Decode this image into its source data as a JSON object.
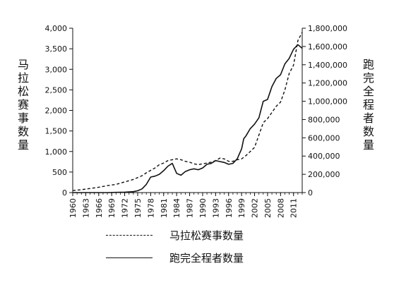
{
  "chart_data": {
    "type": "line",
    "xlabel": "",
    "x_ticks": [
      "1960",
      "1963",
      "1966",
      "1969",
      "1972",
      "1975",
      "1978",
      "1981",
      "1984",
      "1987",
      "1990",
      "1993",
      "1996",
      "1999",
      "2002",
      "2005",
      "2008",
      "2011"
    ],
    "xlim": [
      1960,
      2013
    ],
    "y_left": {
      "label": "马拉松赛事数量",
      "ylim": [
        0,
        4000
      ],
      "ticks": [
        0,
        500,
        1000,
        1500,
        2000,
        2500,
        3000,
        3500,
        4000
      ],
      "tick_labels": [
        "0",
        "500",
        "1,000",
        "1,500",
        "2,000",
        "2,500",
        "3,000",
        "3,500",
        "4,000"
      ]
    },
    "y_right": {
      "label": "跑完全程者数量",
      "ylim": [
        0,
        1800000
      ],
      "ticks": [
        0,
        200000,
        400000,
        600000,
        800000,
        1000000,
        1200000,
        1400000,
        1600000,
        1800000
      ],
      "tick_labels": [
        "0",
        "200,000",
        "400,000",
        "600,000",
        "800,000",
        "1,000,000",
        "1,200,000",
        "1,400,000",
        "1,600,000",
        "1,800,000"
      ]
    },
    "series": [
      {
        "name": "马拉松赛事数量",
        "axis": "left",
        "style": "dashed",
        "x": [
          1960,
          1962,
          1964,
          1966,
          1968,
          1970,
          1972,
          1974,
          1976,
          1977,
          1978,
          1979,
          1980,
          1981,
          1982,
          1983,
          1984,
          1985,
          1986,
          1987,
          1988,
          1989,
          1990,
          1991,
          1992,
          1993,
          1994,
          1995,
          1996,
          1997,
          1998,
          1999,
          2000,
          2001,
          2002,
          2003,
          2004,
          2005,
          2006,
          2007,
          2008,
          2009,
          2010,
          2011,
          2012,
          2013
        ],
        "values": [
          50,
          70,
          100,
          130,
          170,
          200,
          260,
          320,
          410,
          480,
          540,
          600,
          680,
          720,
          780,
          800,
          820,
          800,
          760,
          740,
          700,
          680,
          700,
          720,
          740,
          780,
          840,
          820,
          760,
          760,
          800,
          820,
          900,
          1000,
          1100,
          1400,
          1700,
          1800,
          1950,
          2100,
          2200,
          2500,
          2900,
          3100,
          3700,
          3900
        ]
      },
      {
        "name": "跑完全程者数量",
        "axis": "right",
        "style": "solid",
        "x": [
          1960,
          1968,
          1970,
          1972,
          1974,
          1975,
          1976,
          1977,
          1978,
          1979,
          1980,
          1981,
          1982,
          1983,
          1984,
          1985,
          1986,
          1987,
          1988,
          1989,
          1990,
          1991,
          1992,
          1993,
          1994,
          1995,
          1996,
          1997,
          1998,
          1999,
          1999.5,
          2000,
          2001,
          2002,
          2003,
          2004,
          2005,
          2006,
          2007,
          2008,
          2009,
          2010,
          2011,
          2012,
          2013
        ],
        "values": [
          0,
          0,
          2000,
          5000,
          10000,
          20000,
          40000,
          90000,
          170000,
          180000,
          200000,
          240000,
          290000,
          320000,
          210000,
          190000,
          230000,
          250000,
          260000,
          250000,
          270000,
          310000,
          320000,
          350000,
          340000,
          330000,
          310000,
          320000,
          370000,
          480000,
          590000,
          620000,
          700000,
          750000,
          820000,
          1000000,
          1020000,
          1160000,
          1250000,
          1290000,
          1410000,
          1470000,
          1570000,
          1620000,
          1580000
        ]
      }
    ],
    "legend": {
      "placement": "bottom"
    }
  }
}
